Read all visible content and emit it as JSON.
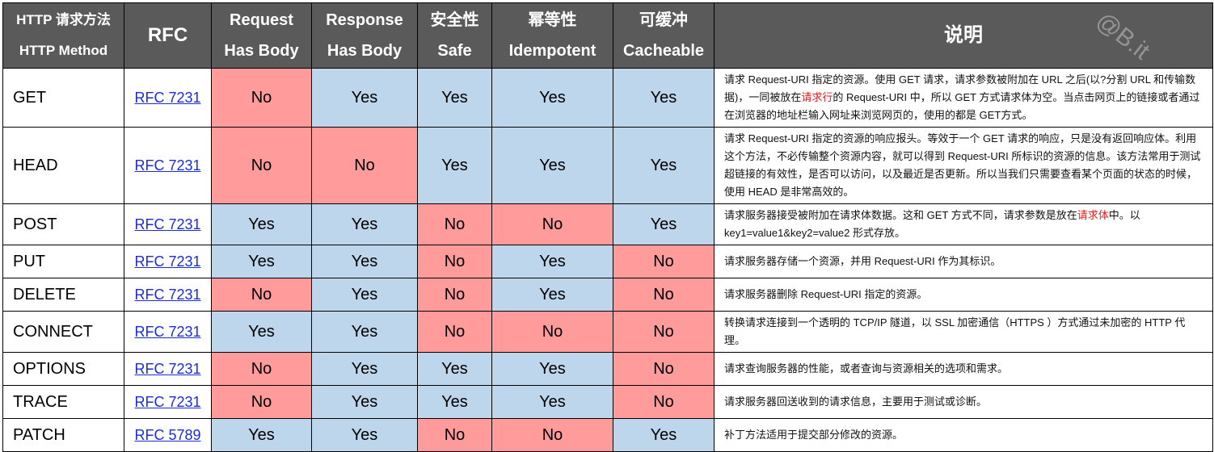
{
  "headers": {
    "method_line1": "HTTP 请求方法",
    "method_line2": "HTTP Method",
    "rfc": "RFC",
    "request_body_line1": "Request",
    "request_body_line2": "Has Body",
    "response_body_line1": "Response",
    "response_body_line2": "Has Body",
    "safe_line1": "安全性",
    "safe_line2": "Safe",
    "idempotent_line1": "幂等性",
    "idempotent_line2": "Idempotent",
    "cacheable_line1": "可缓冲",
    "cacheable_line2": "Cacheable",
    "desc": "说明"
  },
  "watermark": "@B.it",
  "rows": [
    {
      "method": "GET",
      "rfc": "RFC 7231",
      "req_body": "No",
      "resp_body": "Yes",
      "safe": "Yes",
      "idempotent": "Yes",
      "cacheable": "Yes",
      "desc_a": "请求 Request-URI 指定的资源。使用 GET 请求，请求参数被附加在 URL 之后(以?分割 URL 和传输数据)，一同被放在",
      "desc_red": "请求行",
      "desc_b": "的 Request-URI 中，所以 GET 方式请求体为空。当点击网页上的链接或者通过在浏览器的地址栏输入网址来浏览网页的，使用的都是 GET方式。"
    },
    {
      "method": "HEAD",
      "rfc": "RFC 7231",
      "req_body": "No",
      "resp_body": "No",
      "safe": "Yes",
      "idempotent": "Yes",
      "cacheable": "Yes",
      "desc_a": "请求 Request-URI 指定的资源的响应报头。等效于一个 GET 请求的响应，只是没有返回响应体。利用这个方法，不必传输整个资源内容，就可以得到 Request-URI 所标识的资源的信息。该方法常用于测试超链接的有效性，是否可以访问，以及最近是否更新。所以当我们只需要查看某个页面的状态的时候，使用 HEAD 是非常高效的。",
      "desc_red": "",
      "desc_b": ""
    },
    {
      "method": "POST",
      "rfc": "RFC 7231",
      "req_body": "Yes",
      "resp_body": "Yes",
      "safe": "No",
      "idempotent": "No",
      "cacheable": "Yes",
      "desc_a": "请求服务器接受被附加在请求体数据。这和 GET 方式不同，请求参数是放在",
      "desc_red": "请求体",
      "desc_b": "中。以 key1=value1&key2=value2 形式存放。"
    },
    {
      "method": "PUT",
      "rfc": "RFC 7231",
      "req_body": "Yes",
      "resp_body": "Yes",
      "safe": "No",
      "idempotent": "Yes",
      "cacheable": "No",
      "desc_a": "请求服务器存储一个资源，并用 Request-URI 作为其标识。",
      "desc_red": "",
      "desc_b": ""
    },
    {
      "method": "DELETE",
      "rfc": "RFC 7231",
      "req_body": "No",
      "resp_body": "Yes",
      "safe": "No",
      "idempotent": "Yes",
      "cacheable": "No",
      "desc_a": "请求服务器删除 Request-URI 指定的资源。",
      "desc_red": "",
      "desc_b": ""
    },
    {
      "method": "CONNECT",
      "rfc": "RFC 7231",
      "req_body": "Yes",
      "resp_body": "Yes",
      "safe": "No",
      "idempotent": "No",
      "cacheable": "No",
      "desc_a": "转换请求连接到一个透明的 TCP/IP 隧道，以 SSL 加密通信（HTTPS ）方式通过未加密的 HTTP 代理。",
      "desc_red": "",
      "desc_b": ""
    },
    {
      "method": "OPTIONS",
      "rfc": "RFC 7231",
      "req_body": "No",
      "resp_body": "Yes",
      "safe": "Yes",
      "idempotent": "Yes",
      "cacheable": "No",
      "desc_a": "请求查询服务器的性能，或者查询与资源相关的选项和需求。",
      "desc_red": "",
      "desc_b": ""
    },
    {
      "method": "TRACE",
      "rfc": "RFC 7231",
      "req_body": "No",
      "resp_body": "Yes",
      "safe": "Yes",
      "idempotent": "Yes",
      "cacheable": "No",
      "desc_a": "请求服务器回送收到的请求信息，主要用于测试或诊断。",
      "desc_red": "",
      "desc_b": ""
    },
    {
      "method": "PATCH",
      "rfc": "RFC 5789",
      "req_body": "Yes",
      "resp_body": "Yes",
      "safe": "No",
      "idempotent": "No",
      "cacheable": "Yes",
      "desc_a": "补丁方法适用于提交部分修改的资源。",
      "desc_red": "",
      "desc_b": ""
    }
  ]
}
